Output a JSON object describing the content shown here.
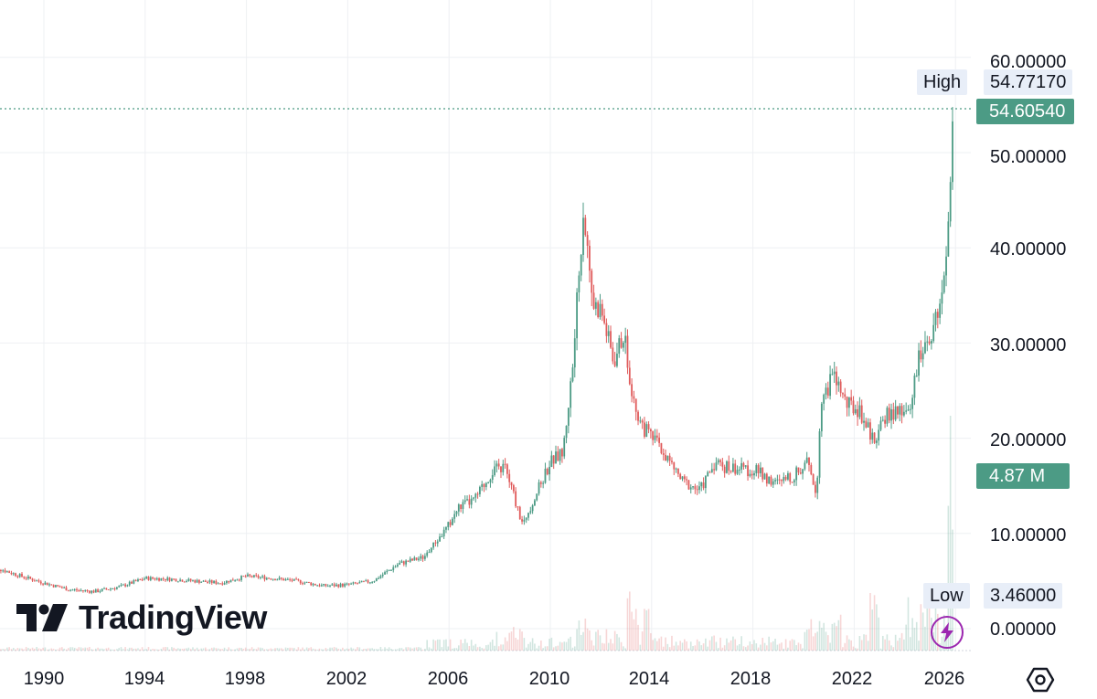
{
  "chart_data": {
    "type": "candlestick",
    "y_axis": {
      "ticks": [
        "60.00000",
        "50.00000",
        "40.00000",
        "30.00000",
        "20.00000",
        "10.00000",
        "0.00000"
      ],
      "tick_values": [
        60,
        50,
        40,
        30,
        20,
        10,
        0
      ],
      "ylim": [
        0,
        60
      ]
    },
    "x_axis": {
      "ticks": [
        "1990",
        "1994",
        "1998",
        "2002",
        "2006",
        "2010",
        "2014",
        "2018",
        "2022",
        "2026"
      ],
      "tick_values": [
        1990,
        1994,
        1998,
        2002,
        2006,
        2010,
        2014,
        2018,
        2022,
        2026
      ]
    },
    "series_close": {
      "x": [
        1988.0,
        1989.0,
        1990.0,
        1991.0,
        1992.0,
        1993.0,
        1994.0,
        1995.0,
        1996.0,
        1997.0,
        1998.0,
        1999.0,
        2000.0,
        2001.0,
        2002.0,
        2003.0,
        2004.0,
        2005.0,
        2005.9,
        2006.4,
        2007.0,
        2007.7,
        2008.2,
        2008.9,
        2009.5,
        2010.0,
        2010.5,
        2010.9,
        2011.3,
        2011.7,
        2012.0,
        2012.5,
        2012.9,
        2013.3,
        2013.7,
        2014.2,
        2014.7,
        2015.2,
        2015.9,
        2016.5,
        2016.9,
        2017.5,
        2018.2,
        2018.9,
        2019.6,
        2020.2,
        2020.5,
        2020.7,
        2021.2,
        2021.7,
        2022.2,
        2022.8,
        2023.3,
        2023.8,
        2024.2,
        2024.6,
        2024.9,
        2025.3,
        2025.6,
        2025.8,
        2025.95
      ],
      "y": [
        6.5,
        5.6,
        4.8,
        4.1,
        3.9,
        4.4,
        5.3,
        5.2,
        5.0,
        4.8,
        5.5,
        5.3,
        5.0,
        4.5,
        4.6,
        5.0,
        6.8,
        7.5,
        10.5,
        12.8,
        13.5,
        16.5,
        17.0,
        11.0,
        14.5,
        17.5,
        18.5,
        28.0,
        44.0,
        34.0,
        33.5,
        28.0,
        31.0,
        23.5,
        21.0,
        19.5,
        17.5,
        15.5,
        14.5,
        17.5,
        17.0,
        16.8,
        16.5,
        15.2,
        16.0,
        17.5,
        14.0,
        24.0,
        26.5,
        23.5,
        23.0,
        19.5,
        22.5,
        22.5,
        23.5,
        29.0,
        30.5,
        32.5,
        36.5,
        48.0,
        54.6054
      ]
    },
    "high_label": "High",
    "high_value": "54.77170",
    "last_price": "54.60540",
    "last_price_value": 54.6054,
    "volume_label": "4.87 M",
    "low_label": "Low",
    "low_value": "3.46000",
    "colors": {
      "up": "#4c9b85",
      "down": "#e05b5b",
      "grid": "#eef0f3",
      "last_price_line": "#4c9b85"
    }
  },
  "branding": {
    "logo_text": "TradingView",
    "logo_icon": "tradingview-logo-icon"
  },
  "controls": {
    "bolt_icon": "lightning-bolt-icon",
    "settings_icon": "settings-icon"
  }
}
